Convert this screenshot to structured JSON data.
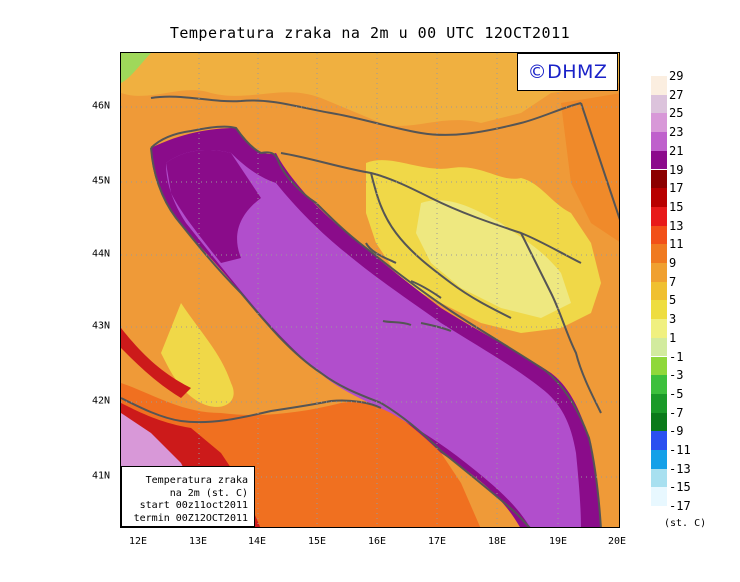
{
  "title": "Temperatura zraka na 2m u 00 UTC 12OCT2011",
  "logo": "©DHMZ",
  "info_box": [
    "Temperatura zraka",
    "na 2m (st. C)",
    "start 00z11oct2011",
    "termin 00Z12OCT2011"
  ],
  "x_ticks": [
    "12E",
    "13E",
    "14E",
    "15E",
    "16E",
    "17E",
    "18E",
    "19E",
    "20E"
  ],
  "y_ticks": [
    "46N",
    "45N",
    "44N",
    "43N",
    "42N",
    "41N"
  ],
  "legend": {
    "units": "(st. C)",
    "labels": [
      "29",
      "27",
      "25",
      "23",
      "21",
      "19",
      "17",
      "15",
      "13",
      "11",
      "9",
      "7",
      "5",
      "3",
      "1",
      "-1",
      "-3",
      "-5",
      "-7",
      "-9",
      "-11",
      "-13",
      "-15",
      "-17"
    ],
    "colors": [
      "#fbeee0",
      "#dcc3dc",
      "#d898d8",
      "#bf60cc",
      "#8c0a8c",
      "#8c0000",
      "#b80000",
      "#e81a1a",
      "#f25018",
      "#f07a20",
      "#f0a030",
      "#f0c030",
      "#eedd40",
      "#f0f080",
      "#d2eb9e",
      "#8fd83a",
      "#3cc03c",
      "#1a9a28",
      "#0a7a1a",
      "#2a50f0",
      "#14a0e8",
      "#a8e0f0",
      "#e8f8ff"
    ]
  },
  "map": {
    "sea_color": "#b14ecc",
    "coast_sea_color": "#8a0c8a",
    "land_color": "#f09030",
    "warm_land_color": "#f07020",
    "cool_land_color": "#f0d040",
    "border_color": "#555555"
  }
}
